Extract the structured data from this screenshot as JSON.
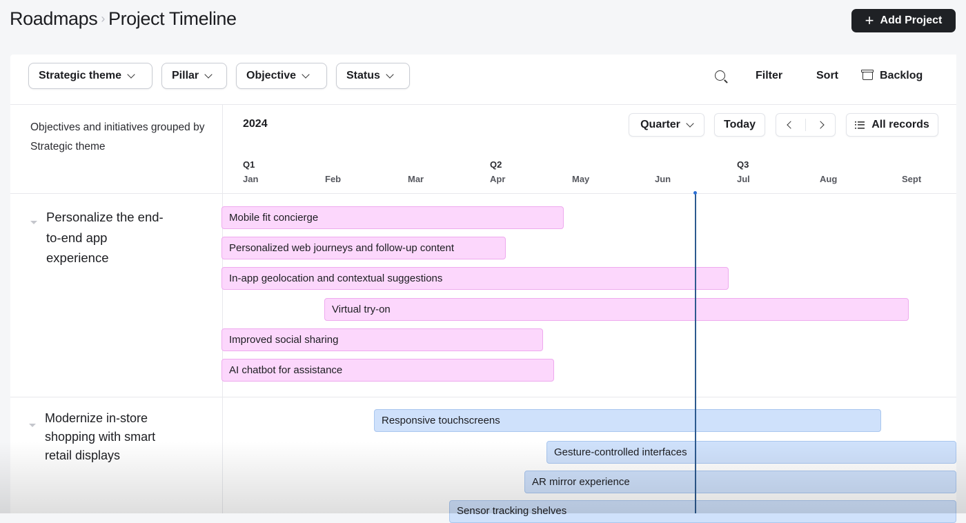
{
  "breadcrumb": {
    "root": "Roadmaps",
    "separator": "›",
    "current": "Project Timeline"
  },
  "actions": {
    "add_project": "Add Project"
  },
  "toolbar": {
    "filters": [
      "Strategic theme",
      "Pillar",
      "Objective",
      "Status"
    ],
    "filter_label": "Filter",
    "sort_label": "Sort",
    "backlog_label": "Backlog"
  },
  "sidebar": {
    "description": "Objectives and initiatives grouped by Strategic theme"
  },
  "timeline": {
    "year": "2024",
    "zoom": "Quarter",
    "today": "Today",
    "all_records": "All records",
    "quarters": [
      "Q1",
      "Q2",
      "Q3"
    ],
    "months": [
      "Jan",
      "Feb",
      "Mar",
      "Apr",
      "May",
      "Jun",
      "Jul",
      "Aug",
      "Sept"
    ]
  },
  "groups": [
    {
      "title": "Personalize the end-to-end app experience",
      "color": "#fcd7fc",
      "items": [
        "Mobile fit concierge",
        "Personalized web journeys and follow-up content",
        "In-app geolocation and contextual suggestions",
        "Virtual try-on",
        "Improved social sharing",
        "AI chatbot for assistance"
      ]
    },
    {
      "title": "Modernize in-store shopping with smart retail displays",
      "color": "#cfe1fb",
      "items": [
        "Responsive touchscreens",
        "Gesture-controlled interfaces",
        "AR mirror experience",
        "Sensor tracking shelves"
      ]
    }
  ]
}
